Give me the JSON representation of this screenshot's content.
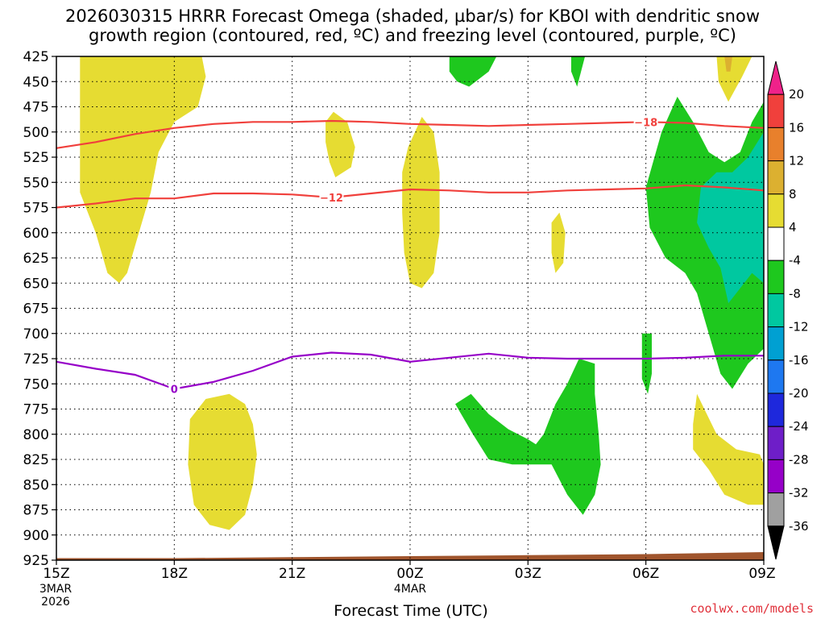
{
  "title": {
    "line1": "2026030315 HRRR Forecast Omega (shaded, µbar/s) for KBOI with dendritic snow",
    "line2": "growth region (contoured, red, ºC) and freezing level (contoured, purple, ºC)"
  },
  "credit": "coolwx.com/models",
  "chart_data": {
    "type": "heatmap",
    "title": "2026030315 HRRR Forecast Omega (shaded, µbar/s) for KBOI with dendritic snow growth region (contoured, red, ºC) and freezing level (contoured, purple, ºC)",
    "xlabel": "Forecast Time (UTC)",
    "ylabel": "",
    "x_range_hours": [
      0,
      18
    ],
    "y_range_mb": [
      425,
      925
    ],
    "y_scale": "inverted",
    "grid": "dotted",
    "y_ticks": [
      425,
      450,
      475,
      500,
      525,
      550,
      575,
      600,
      625,
      650,
      675,
      700,
      725,
      750,
      775,
      800,
      825,
      850,
      875,
      900,
      925
    ],
    "x_ticks": [
      {
        "hour": 0,
        "label": "15Z",
        "sub1": "3MAR",
        "sub2": "2026"
      },
      {
        "hour": 3,
        "label": "18Z",
        "sub1": "",
        "sub2": ""
      },
      {
        "hour": 6,
        "label": "21Z",
        "sub1": "",
        "sub2": ""
      },
      {
        "hour": 9,
        "label": "00Z",
        "sub1": "4MAR",
        "sub2": ""
      },
      {
        "hour": 12,
        "label": "03Z",
        "sub1": "",
        "sub2": ""
      },
      {
        "hour": 15,
        "label": "06Z",
        "sub1": "",
        "sub2": ""
      },
      {
        "hour": 18,
        "label": "09Z",
        "sub1": "",
        "sub2": ""
      }
    ],
    "colorbar": {
      "labels": [
        "20",
        "16",
        "12",
        "8",
        "4",
        "-4",
        "-8",
        "-12",
        "-16",
        "-20",
        "-24",
        "-28",
        "-32",
        "-36"
      ],
      "bins": [
        {
          "color": "#f0228a"
        },
        {
          "color": "#f0403c"
        },
        {
          "color": "#e8802c"
        },
        {
          "color": "#dcb030"
        },
        {
          "color": "#e6dc32"
        },
        {
          "color": "#ffffff"
        },
        {
          "color": "#1ec81e"
        },
        {
          "color": "#00c8a0"
        },
        {
          "color": "#00a0d2"
        },
        {
          "color": "#1e78f0"
        },
        {
          "color": "#1e28dc"
        },
        {
          "color": "#6e1ec8"
        },
        {
          "color": "#9600c8"
        },
        {
          "color": "#a0a0a0"
        },
        {
          "color": "#000000"
        }
      ]
    },
    "omega_regions": [
      {
        "color": "#e6dc32",
        "pts": [
          [
            0.6,
            425
          ],
          [
            3.7,
            425
          ],
          [
            3.8,
            445
          ],
          [
            3.6,
            475
          ],
          [
            3.0,
            490
          ],
          [
            2.6,
            520
          ],
          [
            2.4,
            560
          ],
          [
            2.1,
            600
          ],
          [
            1.8,
            640
          ],
          [
            1.6,
            650
          ],
          [
            1.3,
            640
          ],
          [
            1.0,
            600
          ],
          [
            0.6,
            560
          ],
          [
            0.6,
            425
          ]
        ]
      },
      {
        "color": "#e6dc32",
        "pts": [
          [
            6.85,
            490
          ],
          [
            7.05,
            480
          ],
          [
            7.4,
            490
          ],
          [
            7.6,
            515
          ],
          [
            7.5,
            535
          ],
          [
            7.1,
            545
          ],
          [
            6.95,
            530
          ],
          [
            6.85,
            510
          ],
          [
            6.85,
            490
          ]
        ]
      },
      {
        "color": "#e6dc32",
        "pts": [
          [
            8.8,
            540
          ],
          [
            8.95,
            515
          ],
          [
            9.3,
            485
          ],
          [
            9.6,
            500
          ],
          [
            9.75,
            540
          ],
          [
            9.75,
            600
          ],
          [
            9.6,
            640
          ],
          [
            9.3,
            655
          ],
          [
            9.0,
            650
          ],
          [
            8.85,
            620
          ],
          [
            8.8,
            580
          ],
          [
            8.8,
            540
          ]
        ]
      },
      {
        "color": "#e6dc32",
        "pts": [
          [
            12.6,
            590
          ],
          [
            12.8,
            580
          ],
          [
            12.95,
            600
          ],
          [
            12.9,
            630
          ],
          [
            12.7,
            640
          ],
          [
            12.6,
            620
          ],
          [
            12.6,
            590
          ]
        ]
      },
      {
        "color": "#e6dc32",
        "pts": [
          [
            3.4,
            785
          ],
          [
            3.8,
            765
          ],
          [
            4.4,
            760
          ],
          [
            4.8,
            770
          ],
          [
            5.0,
            790
          ],
          [
            5.1,
            820
          ],
          [
            5.0,
            850
          ],
          [
            4.8,
            880
          ],
          [
            4.4,
            895
          ],
          [
            3.9,
            890
          ],
          [
            3.5,
            870
          ],
          [
            3.35,
            830
          ],
          [
            3.4,
            785
          ]
        ]
      },
      {
        "color": "#e6dc32",
        "pts": [
          [
            16.8,
            425
          ],
          [
            17.7,
            425
          ],
          [
            17.45,
            445
          ],
          [
            17.1,
            470
          ],
          [
            16.85,
            450
          ],
          [
            16.8,
            425
          ]
        ]
      },
      {
        "color": "#dcb030",
        "pts": [
          [
            17.0,
            425
          ],
          [
            17.2,
            425
          ],
          [
            17.15,
            440
          ],
          [
            17.05,
            440
          ],
          [
            17.0,
            425
          ]
        ]
      },
      {
        "color": "#e6dc32",
        "pts": [
          [
            16.2,
            790
          ],
          [
            16.3,
            760
          ],
          [
            16.8,
            800
          ],
          [
            17.3,
            815
          ],
          [
            17.9,
            820
          ],
          [
            18.0,
            830
          ],
          [
            18.0,
            870
          ],
          [
            17.6,
            870
          ],
          [
            17.0,
            860
          ],
          [
            16.6,
            835
          ],
          [
            16.2,
            815
          ],
          [
            16.2,
            790
          ]
        ]
      },
      {
        "color": "#1ec81e",
        "pts": [
          [
            10.0,
            425
          ],
          [
            11.2,
            425
          ],
          [
            11.0,
            440
          ],
          [
            10.5,
            455
          ],
          [
            10.2,
            450
          ],
          [
            10.0,
            440
          ],
          [
            10.0,
            425
          ]
        ]
      },
      {
        "color": "#1ec81e",
        "pts": [
          [
            13.1,
            425
          ],
          [
            13.45,
            425
          ],
          [
            13.35,
            440
          ],
          [
            13.25,
            455
          ],
          [
            13.1,
            440
          ],
          [
            13.1,
            425
          ]
        ]
      },
      {
        "color": "#1ec81e",
        "pts": [
          [
            15.0,
            555
          ],
          [
            15.4,
            500
          ],
          [
            15.8,
            465
          ],
          [
            16.2,
            490
          ],
          [
            16.6,
            520
          ],
          [
            17.0,
            530
          ],
          [
            17.4,
            520
          ],
          [
            17.7,
            490
          ],
          [
            18.0,
            470
          ],
          [
            18.0,
            715
          ],
          [
            17.6,
            730
          ],
          [
            17.2,
            755
          ],
          [
            16.9,
            740
          ],
          [
            16.6,
            700
          ],
          [
            16.3,
            660
          ],
          [
            16.0,
            640
          ],
          [
            15.5,
            625
          ],
          [
            15.1,
            595
          ],
          [
            15.0,
            555
          ]
        ]
      },
      {
        "color": "#00c8a0",
        "pts": [
          [
            16.4,
            555
          ],
          [
            16.8,
            540
          ],
          [
            17.2,
            540
          ],
          [
            17.6,
            525
          ],
          [
            18.0,
            500
          ],
          [
            18.0,
            650
          ],
          [
            17.7,
            640
          ],
          [
            17.3,
            660
          ],
          [
            17.1,
            670
          ],
          [
            16.9,
            635
          ],
          [
            16.6,
            615
          ],
          [
            16.3,
            590
          ],
          [
            16.4,
            555
          ]
        ]
      },
      {
        "color": "#1ec81e",
        "pts": [
          [
            14.9,
            700
          ],
          [
            15.15,
            700
          ],
          [
            15.15,
            740
          ],
          [
            15.05,
            760
          ],
          [
            14.9,
            745
          ],
          [
            14.9,
            700
          ]
        ]
      },
      {
        "color": "#1ec81e",
        "pts": [
          [
            10.15,
            770
          ],
          [
            10.55,
            760
          ],
          [
            11.0,
            780
          ],
          [
            11.5,
            795
          ],
          [
            12.0,
            805
          ],
          [
            12.2,
            810
          ],
          [
            12.4,
            800
          ],
          [
            12.7,
            770
          ],
          [
            13.0,
            750
          ],
          [
            13.3,
            725
          ],
          [
            13.7,
            730
          ],
          [
            13.7,
            760
          ],
          [
            13.8,
            800
          ],
          [
            13.85,
            830
          ],
          [
            13.7,
            860
          ],
          [
            13.4,
            880
          ],
          [
            13.0,
            860
          ],
          [
            12.6,
            830
          ],
          [
            12.2,
            830
          ],
          [
            11.6,
            830
          ],
          [
            11.0,
            825
          ],
          [
            10.6,
            800
          ],
          [
            10.3,
            780
          ],
          [
            10.15,
            770
          ]
        ]
      }
    ],
    "contours": [
      {
        "name": "-18",
        "color": "#f0403c",
        "label": "−18",
        "label_x": 15.0,
        "pts": [
          [
            0,
            516
          ],
          [
            1.0,
            510
          ],
          [
            2.0,
            502
          ],
          [
            3.0,
            496
          ],
          [
            4.0,
            492
          ],
          [
            5.0,
            490
          ],
          [
            6.0,
            490
          ],
          [
            7.0,
            489
          ],
          [
            8.0,
            490
          ],
          [
            9.0,
            492
          ],
          [
            10.0,
            493
          ],
          [
            11.0,
            494
          ],
          [
            12.0,
            493
          ],
          [
            13.0,
            492
          ],
          [
            14.0,
            491
          ],
          [
            15.0,
            490
          ],
          [
            16.0,
            491
          ],
          [
            17.0,
            494
          ],
          [
            18.0,
            496
          ]
        ]
      },
      {
        "name": "-12",
        "color": "#f0403c",
        "label": "−12",
        "label_x": 7.0,
        "pts": [
          [
            0,
            575
          ],
          [
            1.0,
            571
          ],
          [
            2.0,
            566
          ],
          [
            3.0,
            566
          ],
          [
            4.0,
            561
          ],
          [
            5.0,
            561
          ],
          [
            6.0,
            562
          ],
          [
            7.0,
            565
          ],
          [
            8.0,
            561
          ],
          [
            9.0,
            557
          ],
          [
            10.0,
            558
          ],
          [
            11.0,
            560
          ],
          [
            12.0,
            560
          ],
          [
            13.0,
            558
          ],
          [
            14.0,
            557
          ],
          [
            15.0,
            556
          ],
          [
            16.0,
            553
          ],
          [
            17.0,
            555
          ],
          [
            18.0,
            558
          ]
        ]
      },
      {
        "name": "0",
        "color": "#9600c8",
        "label": "0",
        "label_x": 3.0,
        "pts": [
          [
            0,
            728
          ],
          [
            1.0,
            735
          ],
          [
            2.0,
            741
          ],
          [
            3.0,
            755
          ],
          [
            4.0,
            748
          ],
          [
            5.0,
            737
          ],
          [
            6.0,
            723
          ],
          [
            7.0,
            719
          ],
          [
            8.0,
            721
          ],
          [
            9.0,
            728
          ],
          [
            10.0,
            724
          ],
          [
            11.0,
            720
          ],
          [
            12.0,
            724
          ],
          [
            13.0,
            725
          ],
          [
            14.0,
            725
          ],
          [
            15.0,
            725
          ],
          [
            16.0,
            724
          ],
          [
            17.0,
            722
          ],
          [
            18.0,
            722
          ]
        ]
      }
    ],
    "terrain": {
      "color": "#a0552d",
      "pts": [
        [
          0,
          923
        ],
        [
          3.0,
          923
        ],
        [
          6.0,
          922
        ],
        [
          9.0,
          921
        ],
        [
          12.0,
          920
        ],
        [
          15.0,
          919
        ],
        [
          18.0,
          917
        ]
      ]
    }
  }
}
